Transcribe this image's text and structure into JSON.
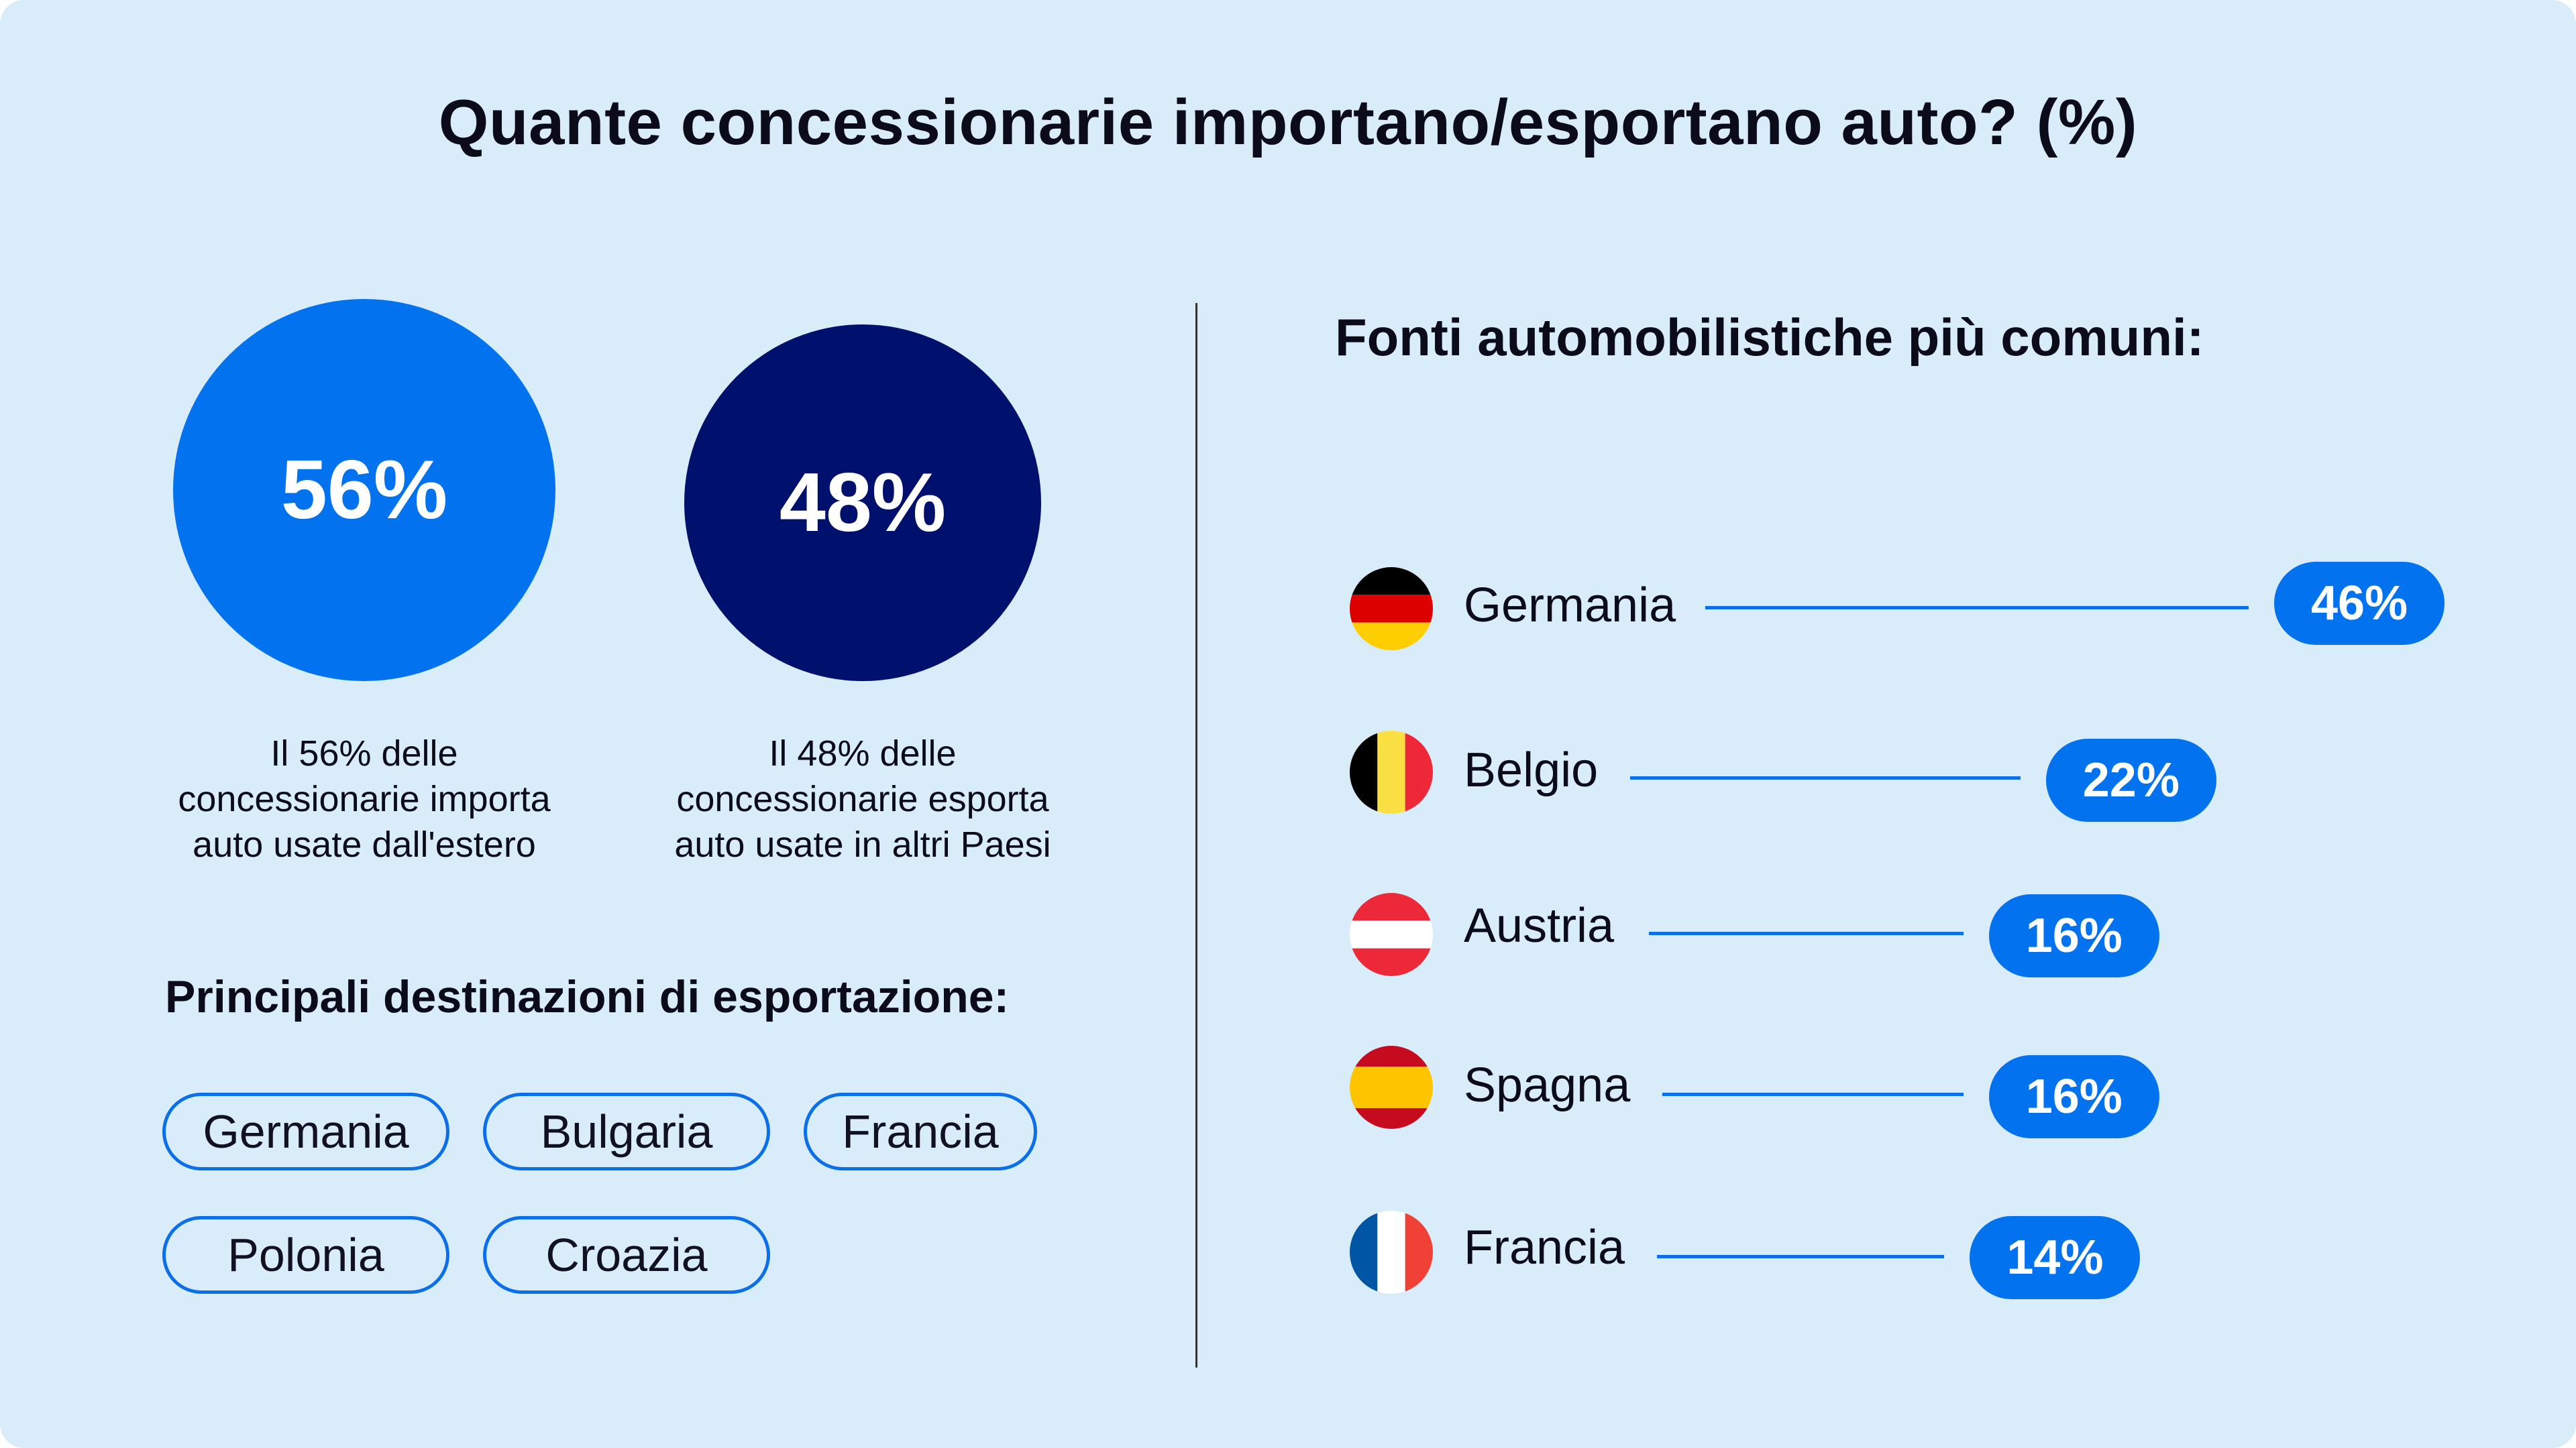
{
  "title": "Quante concessionarie importano/esportano auto? (%)",
  "colors": {
    "background": "#d9ecfa",
    "import": "#0372ee",
    "export": "#00106d",
    "accent": "#0a6fe8"
  },
  "stats": [
    {
      "value": "56%",
      "caption_lines": [
        "Il 56% delle",
        "concessionarie importa",
        "auto usate dall'estero"
      ]
    },
    {
      "value": "48%",
      "caption_lines": [
        "Il 48% delle",
        "concessionarie esporta",
        "auto usate in altri Paesi"
      ]
    }
  ],
  "export_destinations": {
    "heading": "Principali destinazioni di esportazione:",
    "items": [
      "Germania",
      "Bulgaria",
      "Francia",
      "Polonia",
      "Croazia"
    ]
  },
  "chart_data": {
    "type": "bar",
    "title": "Fonti automobilistiche più comuni:",
    "categories": [
      "Germania",
      "Belgio",
      "Austria",
      "Spagna",
      "Francia"
    ],
    "values": [
      46,
      22,
      16,
      16,
      14
    ],
    "labels": [
      "46%",
      "22%",
      "16%",
      "16%",
      "14%"
    ],
    "flag_icons": [
      "germany-flag-icon",
      "belgium-flag-icon",
      "austria-flag-icon",
      "spain-flag-icon",
      "france-flag-icon"
    ],
    "unit": "%"
  }
}
